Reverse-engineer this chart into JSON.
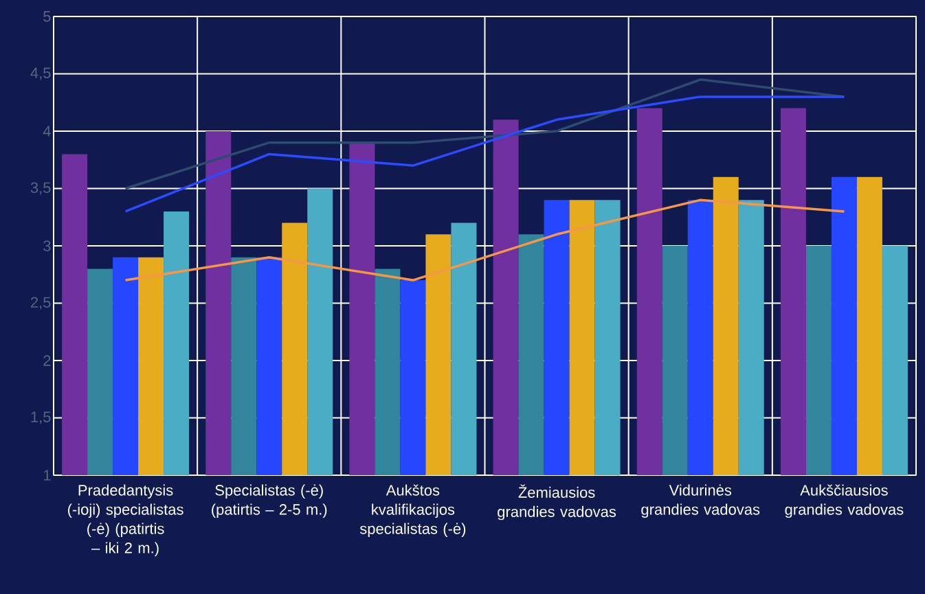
{
  "chart_data": {
    "type": "bar",
    "categories": [
      "Pradedantysis (-ioji) specialistas (-ė) (patirtis – iki 2 m.)",
      "Specialistas (-ė) (patirtis – 2-5 m.)",
      "Aukštos kvalifikacijos specialistas (-ė)",
      "Žemiausios grandies vadovas",
      "Vidurinės grandies vadovas",
      "Aukščiausios grandies vadovas"
    ],
    "series": [
      {
        "color": "#7030a0",
        "values": [
          3.8,
          4.0,
          3.9,
          4.1,
          4.2,
          4.2
        ]
      },
      {
        "color": "#31859c",
        "values": [
          2.8,
          2.9,
          2.8,
          3.1,
          3.0,
          3.0
        ]
      },
      {
        "color": "#2548ff",
        "values": [
          2.9,
          2.9,
          2.7,
          3.4,
          3.4,
          3.6
        ]
      },
      {
        "color": "#e6ac1e",
        "values": [
          2.9,
          3.2,
          3.1,
          3.4,
          3.6,
          3.6
        ]
      },
      {
        "color": "#4bacc6",
        "values": [
          3.3,
          3.5,
          3.2,
          3.4,
          3.4,
          3.0
        ]
      },
      {
        "type": "line",
        "color": "#2e4a6e",
        "values": [
          3.5,
          3.9,
          3.9,
          4.0,
          4.45,
          4.3
        ]
      },
      {
        "type": "line",
        "color": "#2a4bff",
        "values": [
          3.3,
          3.8,
          3.7,
          4.1,
          4.3,
          4.3
        ]
      },
      {
        "type": "line",
        "color": "#f79646",
        "values": [
          2.7,
          2.9,
          2.7,
          3.1,
          3.4,
          3.3
        ]
      }
    ],
    "ylim": [
      1,
      5
    ],
    "yticks": [
      1,
      {
        "value": 1.5,
        "label": "1,5"
      },
      2,
      {
        "value": 2.5,
        "label": "2,5"
      },
      3,
      {
        "value": 3.5,
        "label": "3,5"
      },
      4,
      {
        "value": 4.5,
        "label": "4,5"
      },
      5
    ],
    "grid": true,
    "marker": "none",
    "line_style": "solid"
  }
}
